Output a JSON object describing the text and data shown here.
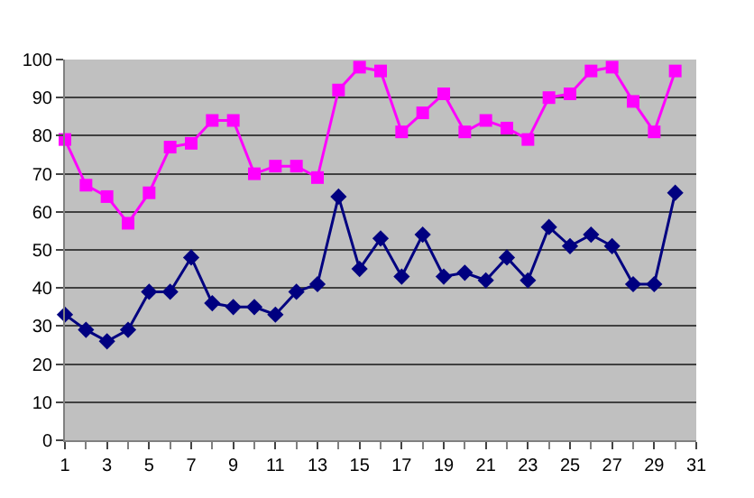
{
  "chart_data": {
    "type": "line",
    "x": [
      1,
      2,
      3,
      4,
      5,
      6,
      7,
      8,
      9,
      10,
      11,
      12,
      13,
      14,
      15,
      16,
      17,
      18,
      19,
      20,
      21,
      22,
      23,
      24,
      25,
      26,
      27,
      28,
      29,
      30
    ],
    "series": [
      {
        "color": "#ff00ff",
        "marker": "square",
        "values": [
          79,
          67,
          64,
          57,
          65,
          77,
          78,
          84,
          84,
          70,
          72,
          72,
          69,
          92,
          98,
          97,
          81,
          86,
          91,
          81,
          84,
          82,
          79,
          90,
          91,
          97,
          98,
          89,
          81,
          97
        ]
      },
      {
        "color": "#000080",
        "marker": "diamond",
        "values": [
          33,
          29,
          26,
          29,
          39,
          39,
          48,
          36,
          35,
          35,
          33,
          39,
          41,
          64,
          45,
          53,
          43,
          54,
          43,
          44,
          42,
          48,
          42,
          56,
          51,
          54,
          51,
          41,
          41,
          65
        ]
      }
    ],
    "xlim": [
      1,
      31
    ],
    "xticks": [
      1,
      3,
      5,
      7,
      9,
      11,
      13,
      15,
      17,
      19,
      21,
      23,
      25,
      27,
      29,
      31
    ],
    "ylim": [
      0,
      100
    ],
    "yticks": [
      0,
      10,
      20,
      30,
      40,
      50,
      60,
      70,
      80,
      90,
      100
    ],
    "grid": "y"
  }
}
